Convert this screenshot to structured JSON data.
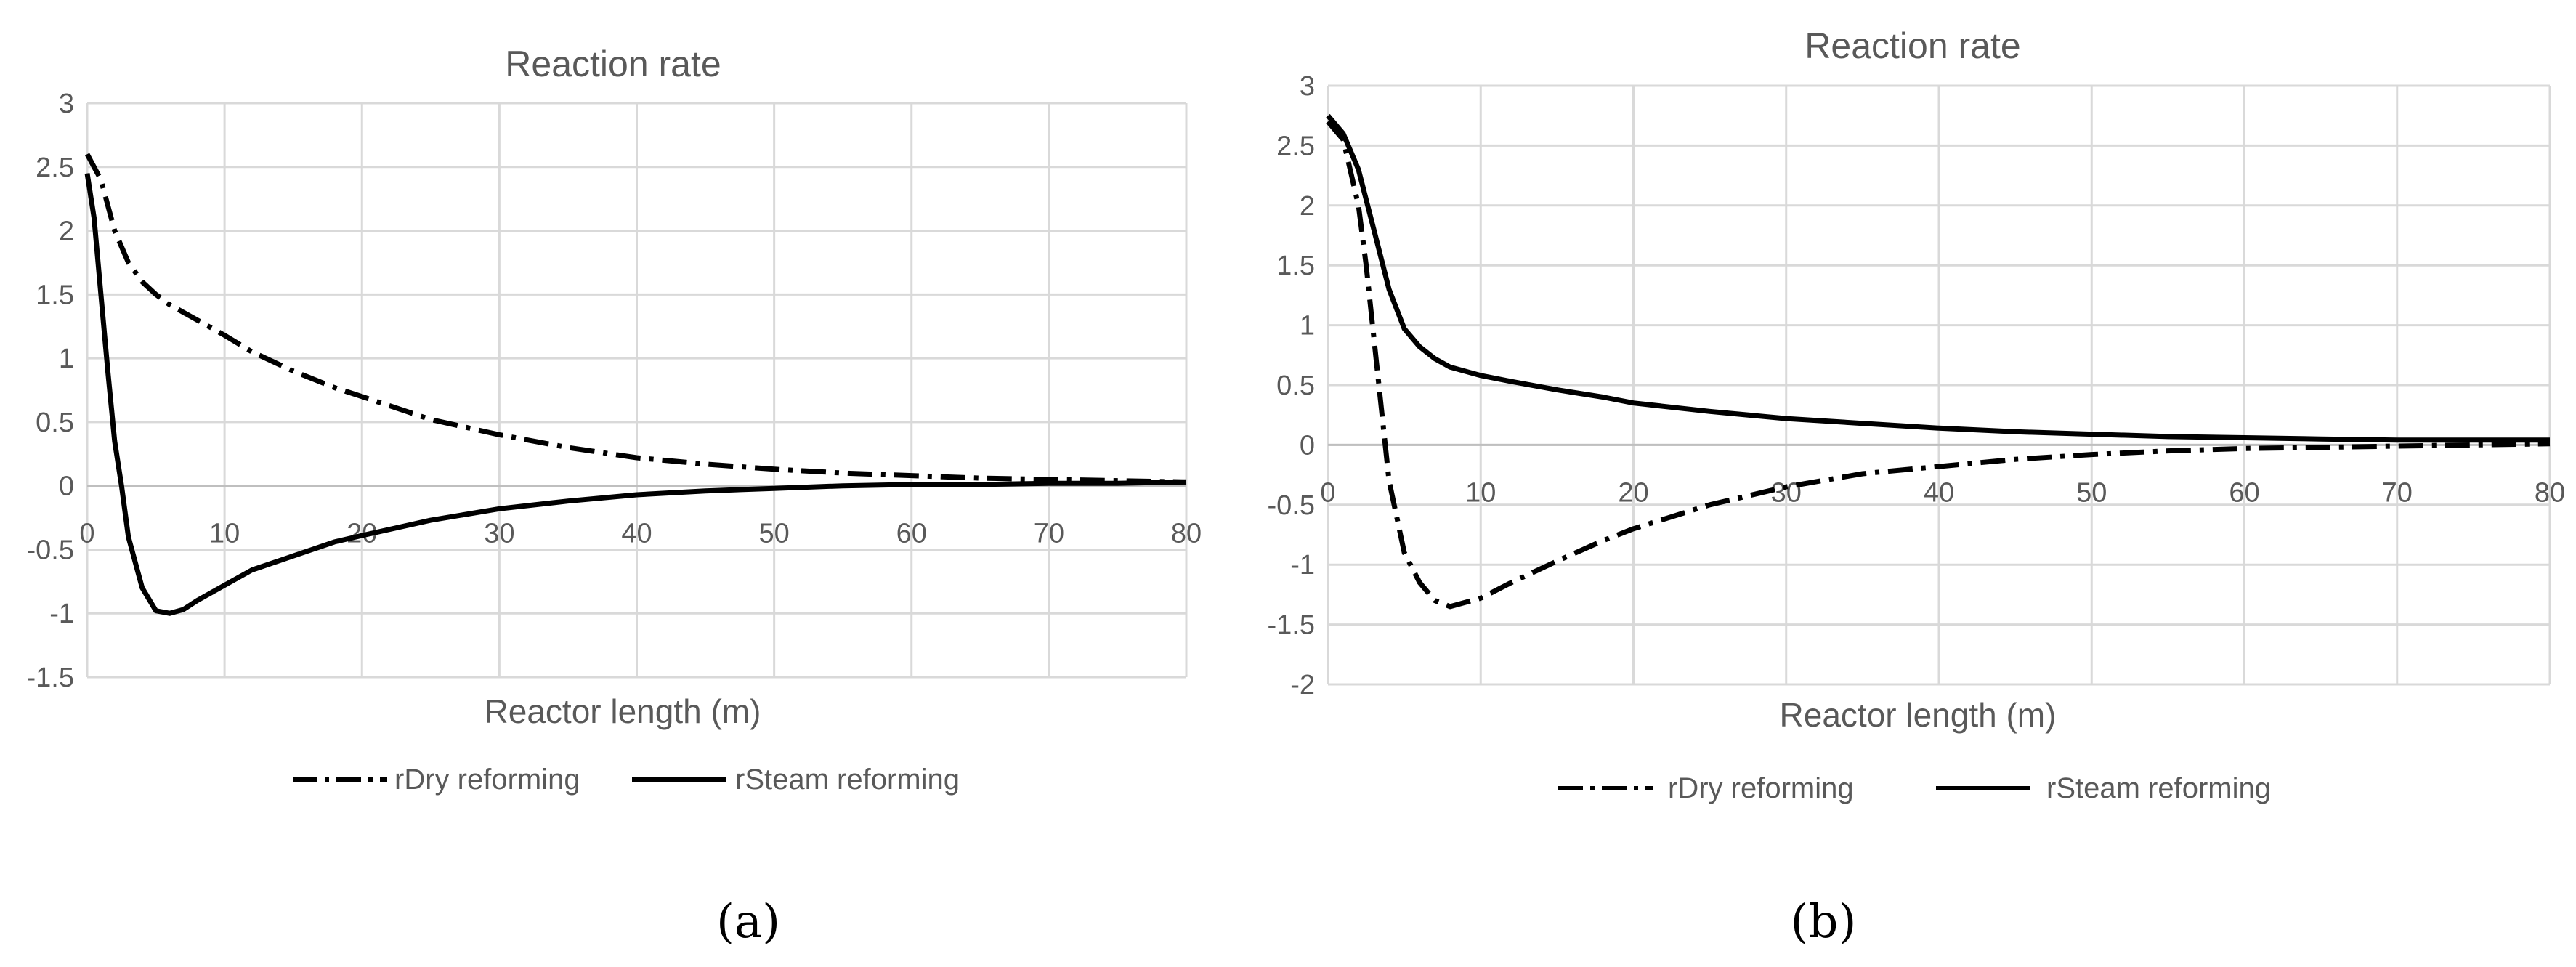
{
  "chart_data": [
    {
      "type": "line",
      "title": "Reaction rate",
      "xlabel": "Reactor length (m)",
      "ylabel": "",
      "xlim": [
        0,
        80
      ],
      "ylim": [
        -1.5,
        3
      ],
      "x_ticks": [
        "0",
        "10",
        "20",
        "30",
        "40",
        "50",
        "60",
        "70",
        "80"
      ],
      "y_ticks": [
        "3",
        "2.5",
        "2",
        "1.5",
        "1",
        "0.5",
        "0",
        "-0.5",
        "-1",
        "-1.5"
      ],
      "grid": true,
      "legend_position": "bottom",
      "caption": "(a)",
      "series": [
        {
          "name": "rDry reforming",
          "style": "dash-dot",
          "points": [
            [
              0,
              2.6
            ],
            [
              1,
              2.4
            ],
            [
              2,
              2.0
            ],
            [
              3,
              1.75
            ],
            [
              4,
              1.6
            ],
            [
              5,
              1.5
            ],
            [
              6,
              1.42
            ],
            [
              8,
              1.3
            ],
            [
              10,
              1.18
            ],
            [
              12,
              1.05
            ],
            [
              15,
              0.9
            ],
            [
              18,
              0.77
            ],
            [
              20,
              0.7
            ],
            [
              25,
              0.52
            ],
            [
              30,
              0.4
            ],
            [
              35,
              0.3
            ],
            [
              40,
              0.22
            ],
            [
              45,
              0.17
            ],
            [
              50,
              0.13
            ],
            [
              55,
              0.1
            ],
            [
              60,
              0.08
            ],
            [
              65,
              0.06
            ],
            [
              70,
              0.05
            ],
            [
              75,
              0.04
            ],
            [
              80,
              0.03
            ]
          ]
        },
        {
          "name": "rSteam reforming",
          "style": "solid",
          "points": [
            [
              0,
              2.45
            ],
            [
              0.5,
              2.1
            ],
            [
              1,
              1.5
            ],
            [
              1.5,
              0.9
            ],
            [
              2,
              0.35
            ],
            [
              2.5,
              0.0
            ],
            [
              3,
              -0.4
            ],
            [
              4,
              -0.8
            ],
            [
              5,
              -0.98
            ],
            [
              6,
              -1.0
            ],
            [
              7,
              -0.97
            ],
            [
              8,
              -0.9
            ],
            [
              10,
              -0.78
            ],
            [
              12,
              -0.66
            ],
            [
              15,
              -0.55
            ],
            [
              18,
              -0.44
            ],
            [
              20,
              -0.39
            ],
            [
              25,
              -0.27
            ],
            [
              30,
              -0.18
            ],
            [
              35,
              -0.12
            ],
            [
              40,
              -0.07
            ],
            [
              45,
              -0.04
            ],
            [
              50,
              -0.02
            ],
            [
              55,
              0.0
            ],
            [
              60,
              0.01
            ],
            [
              65,
              0.01
            ],
            [
              70,
              0.02
            ],
            [
              75,
              0.02
            ],
            [
              80,
              0.03
            ]
          ]
        }
      ]
    },
    {
      "type": "line",
      "title": "Reaction rate",
      "xlabel": "Reactor length (m)",
      "ylabel": "",
      "xlim": [
        0,
        80
      ],
      "ylim": [
        -2,
        3
      ],
      "x_ticks": [
        "0",
        "10",
        "20",
        "30",
        "40",
        "50",
        "60",
        "70",
        "80"
      ],
      "y_ticks": [
        "3",
        "2.5",
        "2",
        "1.5",
        "1",
        "0.5",
        "0",
        "-0.5",
        "-1",
        "-1.5",
        "-2"
      ],
      "grid": true,
      "legend_position": "bottom",
      "caption": "(b)",
      "series": [
        {
          "name": "rDry reforming",
          "style": "dash-dot",
          "points": [
            [
              0,
              2.7
            ],
            [
              1,
              2.55
            ],
            [
              2,
              2.0
            ],
            [
              2.5,
              1.5
            ],
            [
              3,
              0.9
            ],
            [
              3.5,
              0.3
            ],
            [
              4,
              -0.3
            ],
            [
              5,
              -0.9
            ],
            [
              6,
              -1.15
            ],
            [
              7,
              -1.3
            ],
            [
              8,
              -1.35
            ],
            [
              10,
              -1.28
            ],
            [
              12,
              -1.15
            ],
            [
              15,
              -0.97
            ],
            [
              18,
              -0.8
            ],
            [
              20,
              -0.7
            ],
            [
              25,
              -0.5
            ],
            [
              30,
              -0.35
            ],
            [
              35,
              -0.24
            ],
            [
              40,
              -0.18
            ],
            [
              45,
              -0.12
            ],
            [
              50,
              -0.08
            ],
            [
              55,
              -0.05
            ],
            [
              60,
              -0.03
            ],
            [
              65,
              -0.02
            ],
            [
              70,
              -0.01
            ],
            [
              75,
              0.0
            ],
            [
              80,
              0.01
            ]
          ]
        },
        {
          "name": "rSteam reforming",
          "style": "solid",
          "points": [
            [
              0,
              2.75
            ],
            [
              1,
              2.6
            ],
            [
              2,
              2.3
            ],
            [
              3,
              1.8
            ],
            [
              4,
              1.3
            ],
            [
              5,
              0.97
            ],
            [
              6,
              0.82
            ],
            [
              7,
              0.72
            ],
            [
              8,
              0.65
            ],
            [
              10,
              0.58
            ],
            [
              12,
              0.53
            ],
            [
              15,
              0.46
            ],
            [
              18,
              0.4
            ],
            [
              20,
              0.35
            ],
            [
              25,
              0.28
            ],
            [
              30,
              0.22
            ],
            [
              35,
              0.18
            ],
            [
              40,
              0.14
            ],
            [
              45,
              0.11
            ],
            [
              50,
              0.09
            ],
            [
              55,
              0.07
            ],
            [
              60,
              0.06
            ],
            [
              65,
              0.05
            ],
            [
              70,
              0.04
            ],
            [
              75,
              0.04
            ],
            [
              80,
              0.04
            ]
          ]
        }
      ]
    }
  ]
}
